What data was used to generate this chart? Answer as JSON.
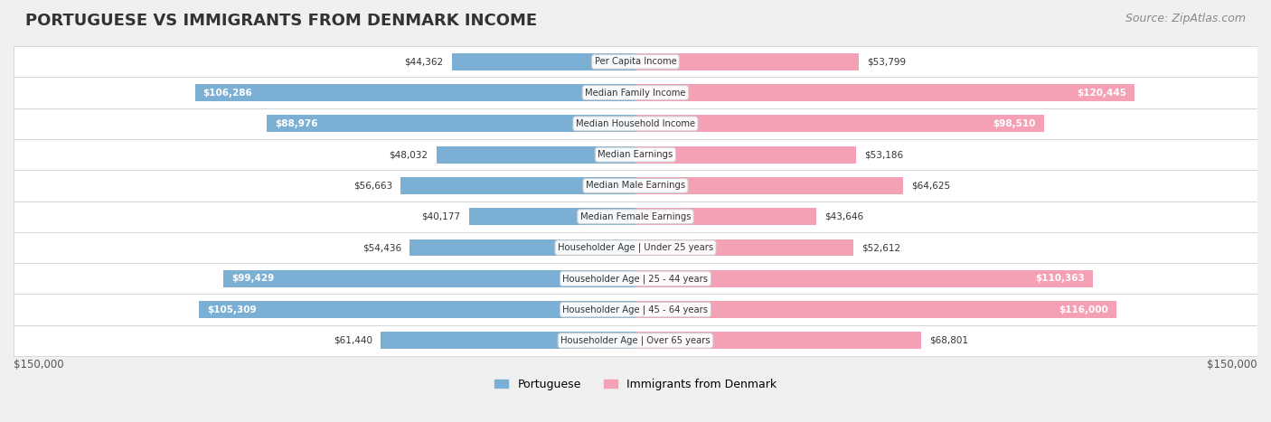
{
  "title": "PORTUGUESE VS IMMIGRANTS FROM DENMARK INCOME",
  "source": "Source: ZipAtlas.com",
  "categories": [
    "Per Capita Income",
    "Median Family Income",
    "Median Household Income",
    "Median Earnings",
    "Median Male Earnings",
    "Median Female Earnings",
    "Householder Age | Under 25 years",
    "Householder Age | 25 - 44 years",
    "Householder Age | 45 - 64 years",
    "Householder Age | Over 65 years"
  ],
  "portuguese_values": [
    44362,
    106286,
    88976,
    48032,
    56663,
    40177,
    54436,
    99429,
    105309,
    61440
  ],
  "denmark_values": [
    53799,
    120445,
    98510,
    53186,
    64625,
    43646,
    52612,
    110363,
    116000,
    68801
  ],
  "portuguese_color": "#7bafd4",
  "denmark_color": "#f4a0b5",
  "portuguese_label_color_threshold": 80000,
  "denmark_label_color_threshold": 80000,
  "max_value": 150000,
  "x_axis_label_left": "$150,000",
  "x_axis_label_right": "$150,000",
  "legend_portuguese": "Portuguese",
  "legend_denmark": "Immigrants from Denmark",
  "background_color": "#f0f0f0",
  "row_bg_color": "#ffffff",
  "row_alt_bg_color": "#f5f5f5",
  "title_fontsize": 13,
  "source_fontsize": 9,
  "bar_height": 0.55,
  "figsize": [
    14.06,
    4.67
  ],
  "dpi": 100
}
